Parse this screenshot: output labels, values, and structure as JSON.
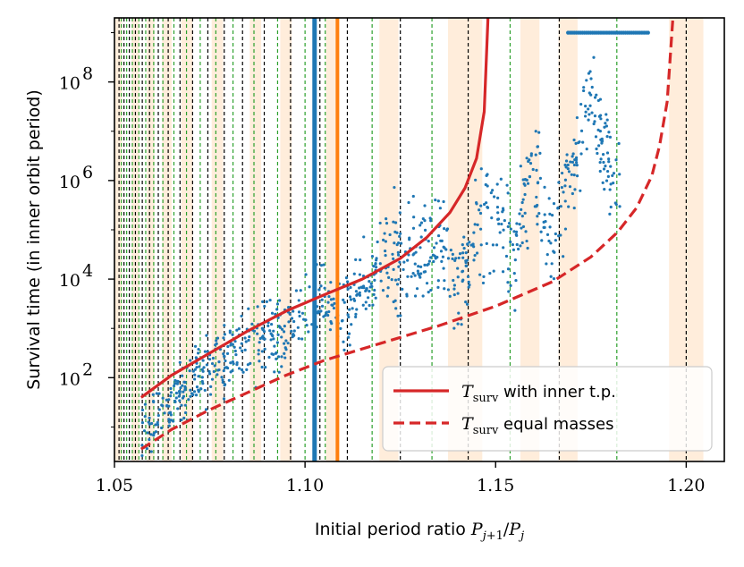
{
  "chart_data": {
    "type": "scatter",
    "xlabel": "Initial period ratio P_{j+1}/P_j",
    "ylabel": "Survival time (in inner orbit period)",
    "xlim": [
      1.05,
      1.21
    ],
    "ylim_log10": [
      0.3,
      9.3
    ],
    "y_scale": "log",
    "x_ticks": [
      {
        "value": 1.05,
        "label": "1.05"
      },
      {
        "value": 1.1,
        "label": "1.10"
      },
      {
        "value": 1.15,
        "label": "1.15"
      },
      {
        "value": 1.2,
        "label": "1.20"
      }
    ],
    "y_ticks": [
      {
        "exp": 2,
        "base": "10",
        "sup": "2"
      },
      {
        "exp": 4,
        "base": "10",
        "sup": "4"
      },
      {
        "exp": 6,
        "base": "10",
        "sup": "6"
      },
      {
        "exp": 8,
        "base": "10",
        "sup": "8"
      }
    ],
    "colors": {
      "points": "#1f77b4",
      "model": "#d62728",
      "black_line": "#000000",
      "green_line": "#2ca02c",
      "band": "#ffcc99",
      "blue_vline": "#1f77b4",
      "orange_vline": "#ff7f0e"
    },
    "vertical_lines": {
      "blue": 1.1025,
      "orange": 1.1085,
      "black": [
        1.0512,
        1.0525,
        1.0539,
        1.0555,
        1.0573,
        1.0592,
        1.0615,
        1.0641,
        1.0672,
        1.0705,
        1.0745,
        1.0788,
        1.0836,
        1.0893,
        1.0962,
        1.1039,
        1.1111,
        1.125,
        1.1428,
        1.1667,
        1.2
      ],
      "green": [
        1.0518,
        1.0532,
        1.0547,
        1.0564,
        1.0582,
        1.0603,
        1.0627,
        1.0656,
        1.0689,
        1.0725,
        1.0766,
        1.0811,
        1.0866,
        1.0928,
        1.1,
        1.1053,
        1.1176,
        1.1333,
        1.1538,
        1.1818
      ]
    },
    "shaded_bands": [
      [
        1.0495,
        1.052
      ],
      [
        1.0545,
        1.0565
      ],
      [
        1.0585,
        1.0605
      ],
      [
        1.0625,
        1.065
      ],
      [
        1.0675,
        1.0705
      ],
      [
        1.0755,
        1.0785
      ],
      [
        1.0855,
        1.0885
      ],
      [
        1.0935,
        1.0965
      ],
      [
        1.1055,
        1.1085
      ],
      [
        1.1195,
        1.1245
      ],
      [
        1.1375,
        1.1465
      ],
      [
        1.1565,
        1.1615
      ],
      [
        1.1665,
        1.1715
      ],
      [
        1.1955,
        1.2045
      ]
    ],
    "series": [
      {
        "name": "T_surv with inner t.p.",
        "style": "solid",
        "x": [
          1.057,
          1.065,
          1.075,
          1.085,
          1.095,
          1.105,
          1.115,
          1.125,
          1.132,
          1.138,
          1.142,
          1.145,
          1.147,
          1.148
        ],
        "log10_y": [
          1.6,
          2.05,
          2.5,
          2.95,
          3.35,
          3.68,
          4.0,
          4.42,
          4.85,
          5.35,
          5.85,
          6.45,
          7.4,
          9.3
        ]
      },
      {
        "name": "T_surv equal masses",
        "style": "dashed",
        "x": [
          1.057,
          1.065,
          1.075,
          1.085,
          1.095,
          1.105,
          1.12,
          1.135,
          1.15,
          1.165,
          1.175,
          1.182,
          1.187,
          1.191,
          1.193,
          1.195,
          1.1965
        ],
        "log10_y": [
          0.55,
          0.95,
          1.35,
          1.7,
          2.05,
          2.35,
          2.7,
          3.05,
          3.45,
          3.95,
          4.45,
          4.95,
          5.45,
          6.1,
          6.7,
          7.6,
          9.3
        ]
      }
    ],
    "scatter_trend": {
      "x": [
        1.057,
        1.065,
        1.075,
        1.085,
        1.095,
        1.1,
        1.105,
        1.11,
        1.115,
        1.12,
        1.125,
        1.13,
        1.135,
        1.14,
        1.145,
        1.15,
        1.155,
        1.16,
        1.165,
        1.17,
        1.175,
        1.18
      ],
      "log10_y": [
        0.9,
        1.5,
        2.2,
        2.6,
        2.9,
        3.4,
        3.6,
        3.2,
        3.9,
        4.3,
        4.6,
        4.4,
        4.7,
        3.9,
        5.0,
        5.3,
        4.6,
        6.2,
        4.6,
        6.4,
        7.7,
        6.0
      ],
      "saturated_segment": {
        "x_start": 1.169,
        "x_end": 1.19,
        "log10_y": 9.0
      }
    },
    "legend": {
      "position": "lower right",
      "entries": [
        {
          "symbol": "T",
          "subscript": "surv",
          "text": " with inner t.p.",
          "style": "solid"
        },
        {
          "symbol": "T",
          "subscript": "surv",
          "text": " equal masses",
          "style": "dashed"
        }
      ]
    }
  }
}
